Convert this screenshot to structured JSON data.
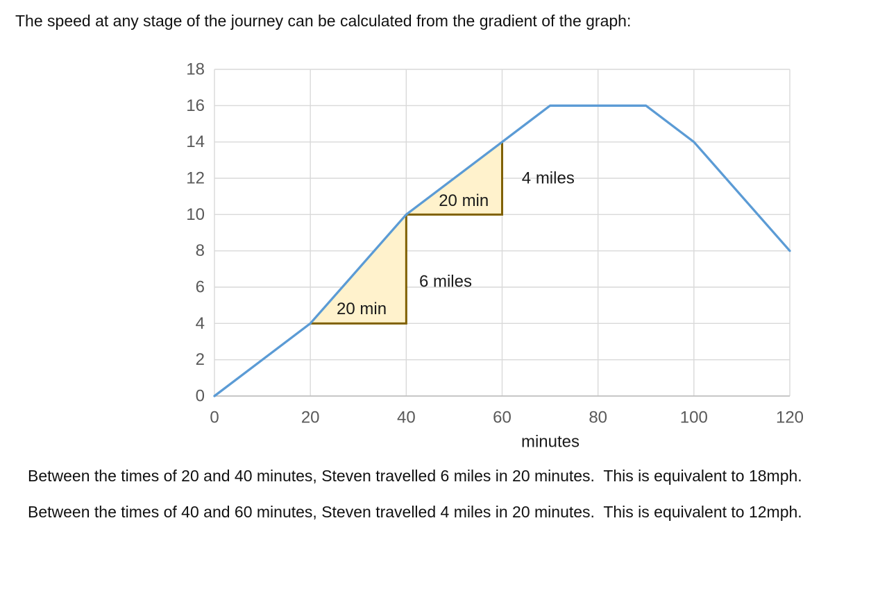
{
  "page": {
    "heading": "The speed at any stage of the journey can be calculated from the gradient of the graph:",
    "paragraphs": [
      "Between the times of 20 and 40 minutes, Steven travelled 6 miles in 20 minutes.  This is equivalent to 18mph.",
      "Between the times of 40 and 60 minutes, Steven travelled 4 miles in 20 minutes.  This is equivalent to 12mph."
    ]
  },
  "chart_data": {
    "type": "line",
    "title": "",
    "xlabel": "minutes",
    "ylabel": "",
    "x": [
      0,
      20,
      40,
      60,
      70,
      90,
      100,
      120
    ],
    "y": [
      0,
      4,
      10,
      14,
      16,
      16,
      14,
      8
    ],
    "xlim": [
      0,
      120
    ],
    "ylim": [
      0,
      18
    ],
    "x_ticks": [
      0,
      20,
      40,
      60,
      80,
      100,
      120
    ],
    "y_ticks": [
      0,
      2,
      4,
      6,
      8,
      10,
      12,
      14,
      16,
      18
    ],
    "grid": true,
    "legend": "none",
    "line_color": "#5B9BD5",
    "gridline_color": "#D9D9D9",
    "axis_line_color": "#BFBFBF",
    "tick_label_color": "#595959",
    "annotation_text_color": "#1a1a1a",
    "annotations": {
      "fill": "#FFF2CC",
      "border": "#7F6000",
      "triangles": [
        {
          "vertices": [
            [
              20,
              4
            ],
            [
              40,
              4
            ],
            [
              40,
              10
            ]
          ],
          "labels": [
            {
              "text": "20 min",
              "at": [
                30.7,
                4.8
              ]
            },
            {
              "text": "6 miles",
              "at": [
                48.2,
                6.3
              ]
            }
          ]
        },
        {
          "vertices": [
            [
              40,
              10
            ],
            [
              60,
              10
            ],
            [
              60,
              14
            ]
          ],
          "labels": [
            {
              "text": "20 min",
              "at": [
                52.0,
                10.75
              ]
            },
            {
              "text": "4 miles",
              "at": [
                69.6,
                12.0
              ]
            }
          ]
        }
      ]
    }
  }
}
